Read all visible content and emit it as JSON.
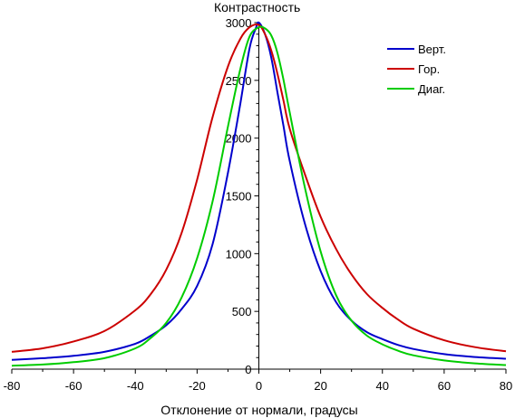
{
  "chart_data": {
    "type": "line",
    "title": "",
    "xlabel": "Отклонение от нормали, градусы",
    "ylabel": "Контрастность",
    "xlim": [
      -80,
      80
    ],
    "ylim": [
      0,
      3000
    ],
    "x_ticks": [
      -80,
      -60,
      -40,
      -20,
      0,
      20,
      40,
      60,
      80
    ],
    "y_ticks": [
      0,
      500,
      1000,
      1500,
      2000,
      2500,
      3000
    ],
    "grid": false,
    "legend_position": "top-right",
    "series": [
      {
        "name": "Верт.",
        "color": "#0000cc",
        "x": [
          -80,
          -70,
          -60,
          -50,
          -40,
          -35,
          -30,
          -25,
          -20,
          -15,
          -10,
          -6,
          -3,
          -1,
          0,
          2,
          4,
          6,
          8,
          10,
          15,
          20,
          25,
          30,
          35,
          40,
          45,
          50,
          60,
          70,
          80
        ],
        "y": [
          80,
          95,
          115,
          150,
          220,
          290,
          380,
          520,
          720,
          1080,
          1700,
          2300,
          2780,
          2950,
          3000,
          2900,
          2700,
          2400,
          2100,
          1800,
          1250,
          850,
          580,
          420,
          320,
          260,
          210,
          175,
          130,
          105,
          90
        ]
      },
      {
        "name": "Гор.",
        "color": "#cc0000",
        "x": [
          -80,
          -70,
          -60,
          -50,
          -40,
          -35,
          -30,
          -25,
          -20,
          -15,
          -10,
          -6,
          -3,
          0,
          2,
          4,
          6,
          8,
          10,
          15,
          20,
          25,
          30,
          35,
          40,
          45,
          50,
          60,
          70,
          80
        ],
        "y": [
          150,
          180,
          240,
          330,
          510,
          650,
          860,
          1180,
          1640,
          2180,
          2620,
          2860,
          2960,
          2980,
          2900,
          2760,
          2560,
          2320,
          2080,
          1680,
          1320,
          1040,
          820,
          650,
          530,
          430,
          350,
          250,
          190,
          155
        ]
      },
      {
        "name": "Диаг.",
        "color": "#00cc00",
        "x": [
          -80,
          -70,
          -60,
          -50,
          -40,
          -35,
          -30,
          -25,
          -20,
          -15,
          -10,
          -6,
          -3,
          0,
          2,
          4,
          6,
          8,
          10,
          15,
          20,
          25,
          30,
          35,
          40,
          45,
          50,
          60,
          70,
          80
        ],
        "y": [
          30,
          40,
          60,
          95,
          180,
          270,
          400,
          620,
          960,
          1450,
          2100,
          2600,
          2880,
          2960,
          2950,
          2890,
          2740,
          2500,
          2220,
          1560,
          1020,
          640,
          420,
          290,
          215,
          160,
          120,
          75,
          50,
          35
        ]
      }
    ]
  }
}
